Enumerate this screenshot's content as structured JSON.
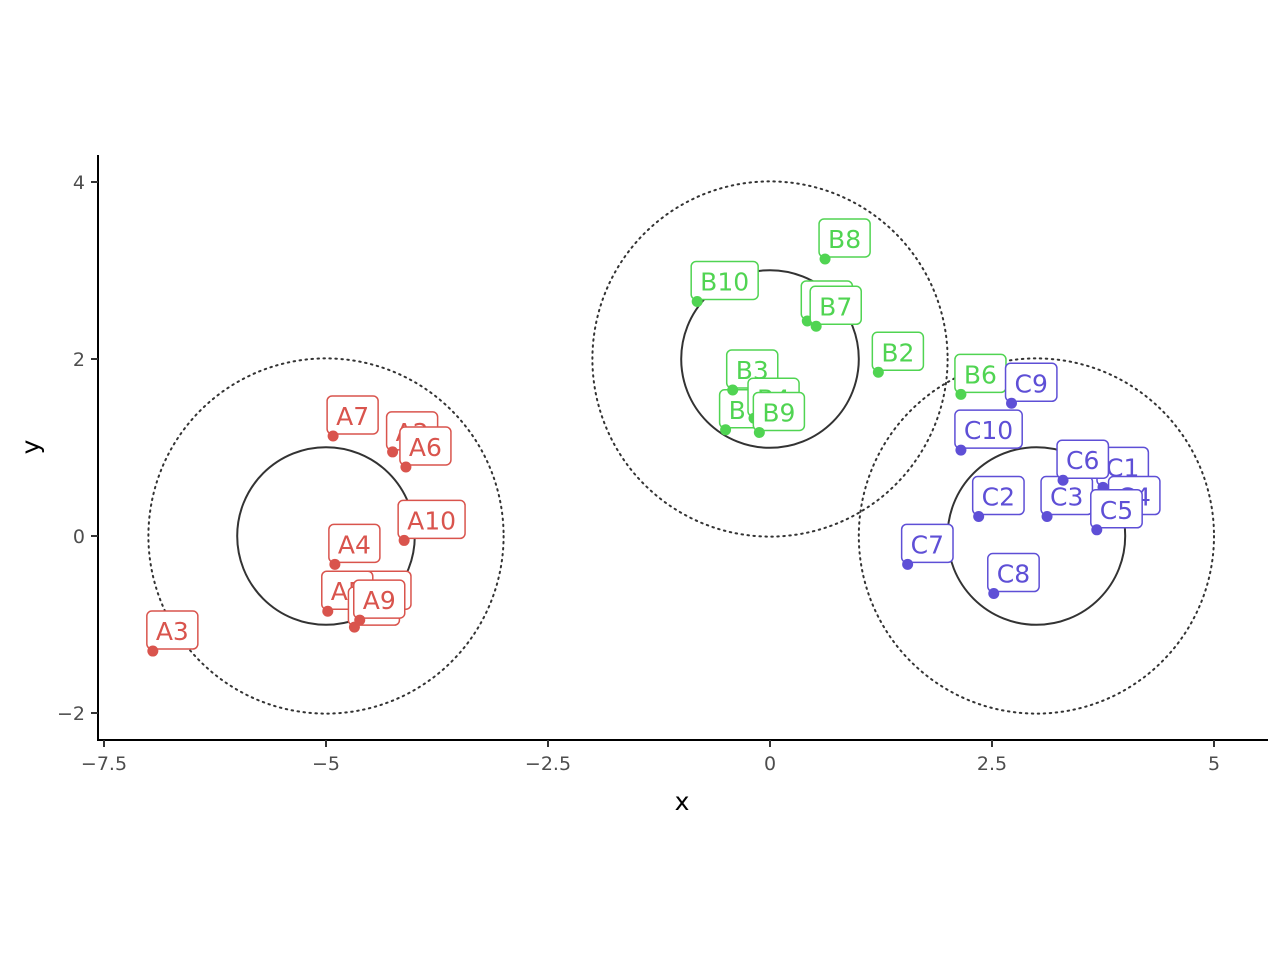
{
  "chart_data": {
    "type": "scatter",
    "xlabel": "x",
    "ylabel": "y",
    "xlim": [
      -7.6,
      5.6
    ],
    "ylim": [
      -2.3,
      4.3
    ],
    "x_ticks": [
      -7.5,
      -5,
      -2.5,
      0,
      2.5,
      5
    ],
    "x_tick_labels": [
      "−7.5",
      "−5",
      "−2.5",
      "0",
      "2.5",
      "5"
    ],
    "y_ticks": [
      -2,
      0,
      2,
      4
    ],
    "y_tick_labels": [
      "−2",
      "0",
      "2",
      "4"
    ],
    "grid": false,
    "legend": "none",
    "circles": [
      {
        "cx": -5,
        "cy": 0,
        "r": 1,
        "style": "solid"
      },
      {
        "cx": -5,
        "cy": 0,
        "r": 2,
        "style": "dotted"
      },
      {
        "cx": 0,
        "cy": 2,
        "r": 1,
        "style": "solid"
      },
      {
        "cx": 0,
        "cy": 2,
        "r": 2,
        "style": "dotted"
      },
      {
        "cx": 3,
        "cy": 0,
        "r": 1,
        "style": "solid"
      },
      {
        "cx": 3,
        "cy": 0,
        "r": 2,
        "style": "dotted"
      }
    ],
    "series": [
      {
        "color": "#d9544d",
        "points": [
          {
            "label": "A1",
            "x": -4.55,
            "y": -0.85
          },
          {
            "label": "A2",
            "x": -4.25,
            "y": 0.95
          },
          {
            "label": "A3",
            "x": -6.95,
            "y": -1.3
          },
          {
            "label": "A4",
            "x": -4.9,
            "y": -0.32
          },
          {
            "label": "A5",
            "x": -4.98,
            "y": -0.85
          },
          {
            "label": "A6",
            "x": -4.1,
            "y": 0.78
          },
          {
            "label": "A7",
            "x": -4.92,
            "y": 1.13
          },
          {
            "label": "A8",
            "x": -4.68,
            "y": -1.03
          },
          {
            "label": "A9",
            "x": -4.62,
            "y": -0.95
          },
          {
            "label": "A10",
            "x": -4.12,
            "y": -0.05
          }
        ]
      },
      {
        "color": "#50d452",
        "points": [
          {
            "label": "B1",
            "x": -0.5,
            "y": 1.2
          },
          {
            "label": "B2",
            "x": 1.22,
            "y": 1.85
          },
          {
            "label": "B3",
            "x": -0.42,
            "y": 1.65
          },
          {
            "label": "B4",
            "x": -0.18,
            "y": 1.33
          },
          {
            "label": "B5",
            "x": 0.42,
            "y": 2.43
          },
          {
            "label": "B6",
            "x": 2.15,
            "y": 1.6
          },
          {
            "label": "B7",
            "x": 0.52,
            "y": 2.37
          },
          {
            "label": "B8",
            "x": 0.62,
            "y": 3.13
          },
          {
            "label": "B9",
            "x": -0.12,
            "y": 1.17
          },
          {
            "label": "B10",
            "x": -0.82,
            "y": 2.65
          }
        ]
      },
      {
        "color": "#5e4fd6",
        "points": [
          {
            "label": "C1",
            "x": 3.75,
            "y": 0.55
          },
          {
            "label": "C2",
            "x": 2.35,
            "y": 0.22
          },
          {
            "label": "C3",
            "x": 3.12,
            "y": 0.22
          },
          {
            "label": "C4",
            "x": 3.88,
            "y": 0.22
          },
          {
            "label": "C5",
            "x": 3.68,
            "y": 0.07
          },
          {
            "label": "C6",
            "x": 3.3,
            "y": 0.63
          },
          {
            "label": "C7",
            "x": 1.55,
            "y": -0.32
          },
          {
            "label": "C8",
            "x": 2.52,
            "y": -0.65
          },
          {
            "label": "C9",
            "x": 2.72,
            "y": 1.5
          },
          {
            "label": "C10",
            "x": 2.15,
            "y": 0.97
          }
        ]
      }
    ]
  }
}
